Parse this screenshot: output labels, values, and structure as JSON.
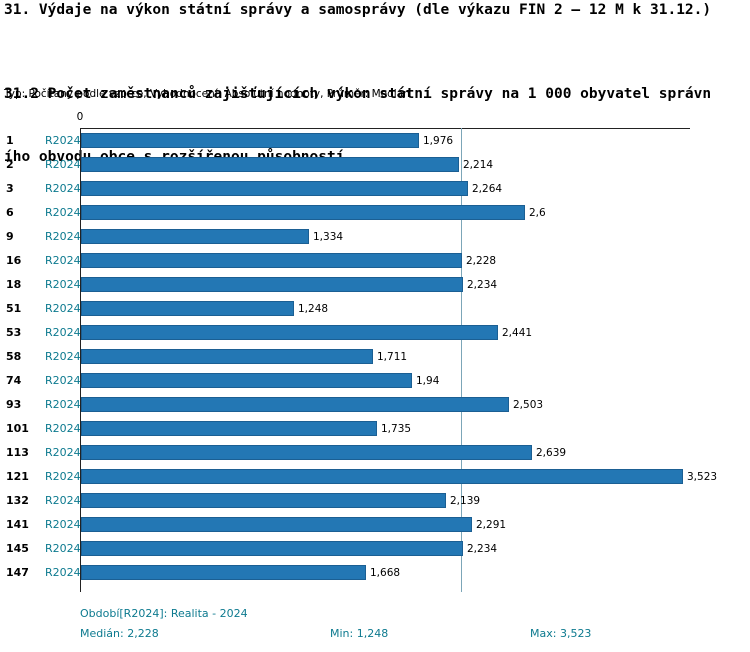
{
  "header": {
    "title1": "31. Výdaje na výkon státní správy a samosprávy (dle výkazu FIN 2 – 12 M k 31.12.)",
    "title2_line1": "31.2 Počet zaměstnanců zajišťujících výkon státní správy na 1 000 obyvatel správn",
    "title2_line2": "ího obvodu obce s rozšířenou působností",
    "subtitle": "Typ: Počítaný podle vzorce, Vyhodnocení: Absolutní hodnoty, Průměr: Medián"
  },
  "chart_data": {
    "type": "bar",
    "orientation": "horizontal",
    "title": "31.2 Počet zaměstnanců zajišťujících výkon státní správy na 1 000 obyvatel správního obvodu obce s rozšířenou působností",
    "series_label": "R2024",
    "categories": [
      "1",
      "2",
      "3",
      "6",
      "9",
      "16",
      "18",
      "51",
      "53",
      "58",
      "74",
      "93",
      "101",
      "113",
      "121",
      "132",
      "141",
      "145",
      "147"
    ],
    "values": [
      1.976,
      2.214,
      2.264,
      2.6,
      1.334,
      2.228,
      2.234,
      1.248,
      2.441,
      1.711,
      1.94,
      2.503,
      1.735,
      2.639,
      3.523,
      2.139,
      2.291,
      2.234,
      1.668
    ],
    "value_labels": [
      "1,976",
      "2,214",
      "2,264",
      "2,6",
      "1,334",
      "2,228",
      "2,234",
      "1,248",
      "2,441",
      "1,711",
      "1,94",
      "2,503",
      "1,735",
      "2,639",
      "3,523",
      "2,139",
      "2,291",
      "2,234",
      "1,668"
    ],
    "axis_zero_label": "0",
    "xlim": [
      0,
      3.57
    ],
    "median": 2.228,
    "grid": false,
    "legend_position": "none",
    "bar_color": "#2377b4"
  },
  "colors": {
    "accent": "#0d7a8f",
    "bar": "#2377b4",
    "median_line": "#7ca6b8"
  },
  "footer": {
    "period": "Období[R2024]: Realita - 2024",
    "median": "Medián: 2,228",
    "min": "Min: 1,248",
    "max": "Max: 3,523"
  }
}
